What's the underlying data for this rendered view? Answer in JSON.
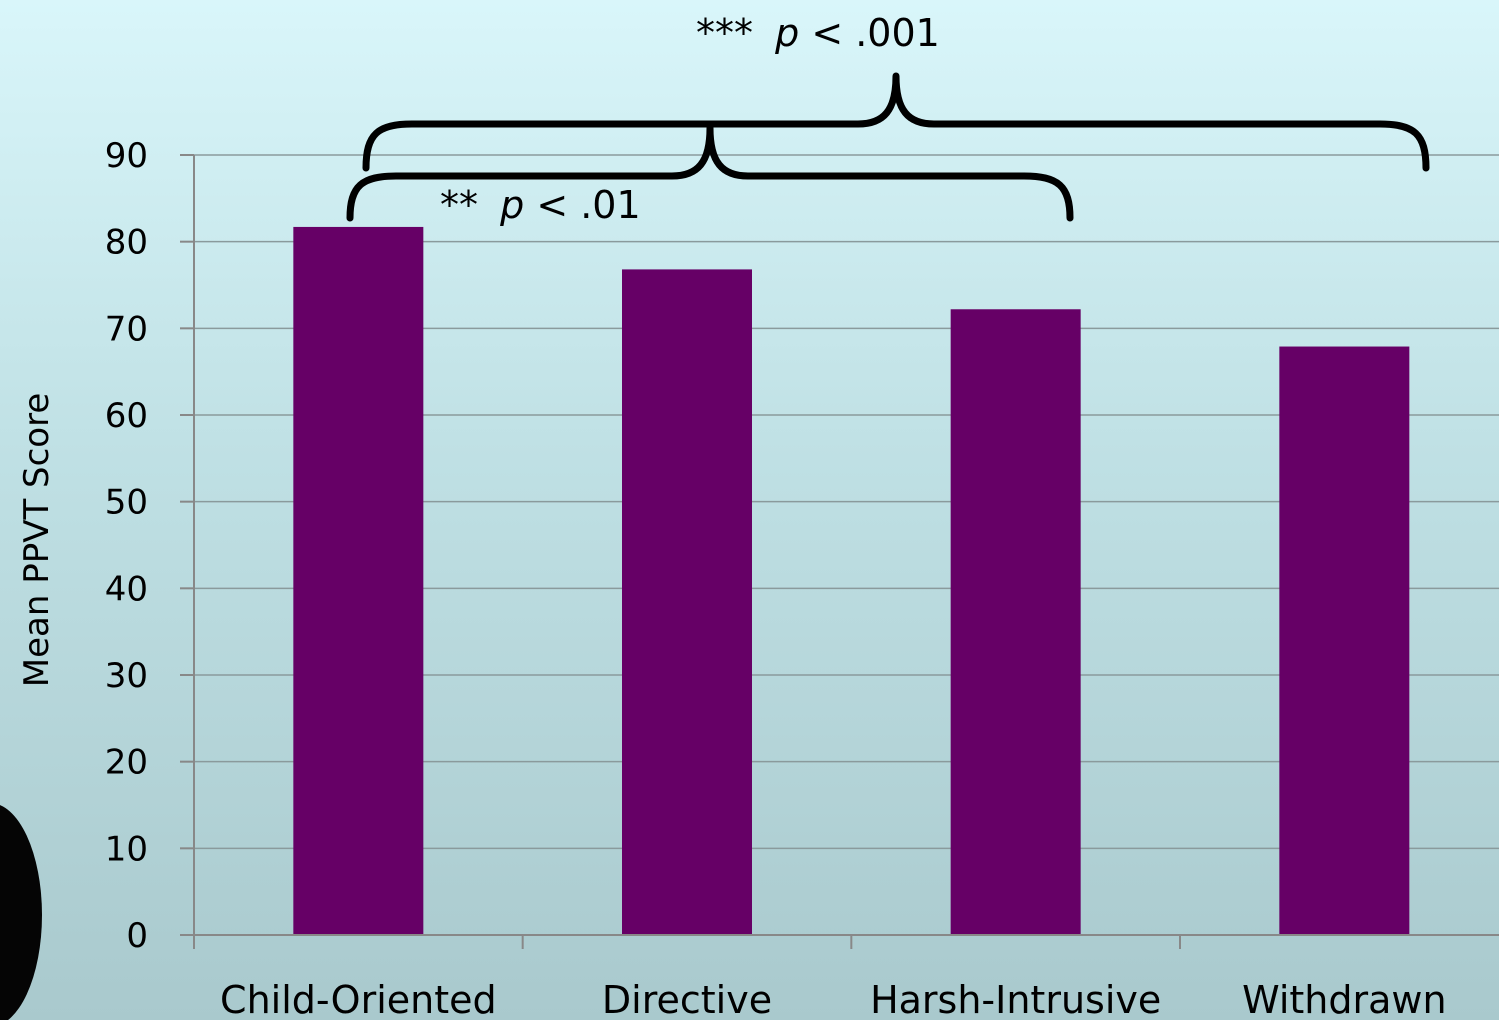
{
  "chart_data": {
    "type": "bar",
    "categories": [
      "Child-Oriented",
      "Directive",
      "Harsh-Intrusive",
      "Withdrawn"
    ],
    "series": [
      {
        "values": [
          81.7,
          76.8,
          72.2,
          67.9
        ],
        "color": "#660066"
      }
    ],
    "ylabel": "Mean PPVT Score",
    "ylim": [
      0,
      90
    ],
    "yticks": [
      0,
      10,
      20,
      30,
      40,
      50,
      60,
      70,
      80,
      90
    ],
    "grid": true,
    "legend": "none",
    "annotations": [
      {
        "stars": "***",
        "p": "p",
        "rest": " < .001",
        "from": "Child-Oriented",
        "to": "Withdrawn"
      },
      {
        "stars": "**",
        "p": "p",
        "rest": " < .01",
        "from": "Child-Oriented",
        "to": "Harsh-Intrusive"
      }
    ]
  }
}
